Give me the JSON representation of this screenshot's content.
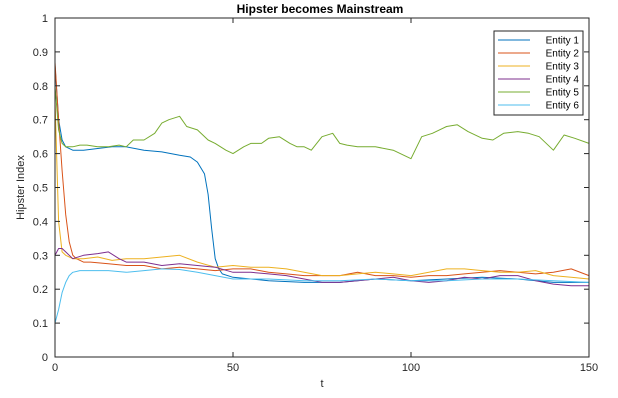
{
  "chart_data": {
    "type": "line",
    "title": "Hipster becomes Mainstream",
    "xlabel": "t",
    "ylabel": "Hipster Index",
    "xlim": [
      0,
      150
    ],
    "ylim": [
      0,
      1
    ],
    "xticks": [
      0,
      50,
      100,
      150
    ],
    "yticks": [
      0,
      0.1,
      0.2,
      0.3,
      0.4,
      0.5,
      0.6,
      0.7,
      0.8,
      0.9,
      1
    ],
    "xtick_labels": [
      "0",
      "50",
      "100",
      "150"
    ],
    "ytick_labels": [
      "0",
      "0.1",
      "0.2",
      "0.3",
      "0.4",
      "0.5",
      "0.6",
      "0.7",
      "0.8",
      "0.9",
      "1"
    ],
    "grid": false,
    "legend_position": "top-right",
    "series": [
      {
        "name": "Entity 1",
        "color": "#0072BD",
        "x": [
          0,
          1,
          2,
          3,
          5,
          8,
          12,
          16,
          20,
          25,
          30,
          35,
          38,
          40,
          42,
          43,
          44,
          45,
          46,
          47,
          50,
          55,
          60,
          70,
          80,
          90,
          100,
          110,
          120,
          130,
          140,
          150
        ],
        "y": [
          0.86,
          0.7,
          0.64,
          0.62,
          0.61,
          0.61,
          0.615,
          0.62,
          0.62,
          0.61,
          0.605,
          0.595,
          0.59,
          0.575,
          0.54,
          0.48,
          0.38,
          0.29,
          0.26,
          0.245,
          0.235,
          0.23,
          0.225,
          0.22,
          0.22,
          0.23,
          0.225,
          0.23,
          0.235,
          0.23,
          0.22,
          0.22
        ]
      },
      {
        "name": "Entity 2",
        "color": "#D95319",
        "x": [
          0,
          1,
          2,
          3,
          4,
          5,
          6,
          8,
          10,
          15,
          20,
          25,
          30,
          35,
          40,
          45,
          50,
          55,
          60,
          65,
          70,
          75,
          80,
          85,
          90,
          95,
          100,
          105,
          110,
          115,
          120,
          125,
          130,
          135,
          140,
          145,
          150
        ],
        "y": [
          0.87,
          0.7,
          0.55,
          0.42,
          0.34,
          0.3,
          0.29,
          0.28,
          0.28,
          0.275,
          0.27,
          0.27,
          0.26,
          0.265,
          0.26,
          0.255,
          0.26,
          0.26,
          0.25,
          0.245,
          0.24,
          0.24,
          0.24,
          0.25,
          0.24,
          0.24,
          0.235,
          0.24,
          0.24,
          0.245,
          0.25,
          0.255,
          0.25,
          0.245,
          0.25,
          0.26,
          0.24
        ]
      },
      {
        "name": "Entity 3",
        "color": "#EDB120",
        "x": [
          0,
          1,
          2,
          3,
          5,
          8,
          12,
          16,
          20,
          25,
          30,
          35,
          40,
          45,
          50,
          55,
          60,
          65,
          70,
          75,
          80,
          85,
          90,
          95,
          100,
          105,
          110,
          115,
          120,
          125,
          130,
          135,
          140,
          145,
          150
        ],
        "y": [
          0.76,
          0.4,
          0.31,
          0.3,
          0.29,
          0.29,
          0.295,
          0.285,
          0.29,
          0.29,
          0.295,
          0.3,
          0.28,
          0.265,
          0.27,
          0.265,
          0.265,
          0.26,
          0.25,
          0.24,
          0.24,
          0.245,
          0.25,
          0.245,
          0.24,
          0.25,
          0.26,
          0.26,
          0.255,
          0.25,
          0.25,
          0.255,
          0.24,
          0.235,
          0.23
        ]
      },
      {
        "name": "Entity 4",
        "color": "#7E2F8E",
        "x": [
          0,
          1,
          2,
          3,
          5,
          8,
          12,
          15,
          18,
          20,
          25,
          30,
          35,
          40,
          45,
          50,
          55,
          60,
          65,
          70,
          75,
          80,
          85,
          90,
          95,
          100,
          105,
          110,
          115,
          120,
          125,
          130,
          135,
          140,
          145,
          150
        ],
        "y": [
          0.3,
          0.32,
          0.32,
          0.31,
          0.29,
          0.3,
          0.305,
          0.31,
          0.29,
          0.28,
          0.28,
          0.27,
          0.275,
          0.27,
          0.265,
          0.25,
          0.25,
          0.245,
          0.24,
          0.23,
          0.22,
          0.22,
          0.225,
          0.23,
          0.235,
          0.225,
          0.22,
          0.225,
          0.235,
          0.23,
          0.24,
          0.24,
          0.225,
          0.215,
          0.21,
          0.21
        ]
      },
      {
        "name": "Entity 5",
        "color": "#77AC30",
        "x": [
          0,
          1,
          2,
          3,
          5,
          7,
          9,
          12,
          15,
          18,
          20,
          22,
          25,
          28,
          30,
          32,
          35,
          37,
          40,
          43,
          45,
          48,
          50,
          53,
          55,
          58,
          60,
          63,
          66,
          68,
          70,
          72,
          75,
          78,
          80,
          82,
          85,
          90,
          95,
          100,
          103,
          106,
          110,
          113,
          116,
          120,
          123,
          126,
          130,
          133,
          136,
          140,
          143,
          146,
          150
        ],
        "y": [
          0.8,
          0.67,
          0.63,
          0.62,
          0.62,
          0.625,
          0.625,
          0.62,
          0.62,
          0.625,
          0.62,
          0.64,
          0.64,
          0.66,
          0.69,
          0.7,
          0.71,
          0.68,
          0.67,
          0.64,
          0.63,
          0.61,
          0.6,
          0.62,
          0.63,
          0.63,
          0.645,
          0.65,
          0.63,
          0.62,
          0.62,
          0.61,
          0.65,
          0.66,
          0.63,
          0.625,
          0.62,
          0.62,
          0.61,
          0.585,
          0.65,
          0.66,
          0.68,
          0.685,
          0.665,
          0.645,
          0.64,
          0.66,
          0.665,
          0.66,
          0.65,
          0.61,
          0.655,
          0.645,
          0.63
        ]
      },
      {
        "name": "Entity 6",
        "color": "#4DBEEE",
        "x": [
          0,
          1,
          2,
          3,
          4,
          5,
          7,
          10,
          15,
          20,
          25,
          30,
          35,
          40,
          45,
          50,
          55,
          60,
          70,
          80,
          90,
          100,
          110,
          120,
          130,
          140,
          150
        ],
        "y": [
          0.1,
          0.14,
          0.19,
          0.22,
          0.24,
          0.25,
          0.255,
          0.255,
          0.255,
          0.25,
          0.255,
          0.26,
          0.258,
          0.25,
          0.24,
          0.23,
          0.23,
          0.23,
          0.225,
          0.225,
          0.23,
          0.225,
          0.225,
          0.23,
          0.23,
          0.225,
          0.22
        ]
      }
    ]
  }
}
